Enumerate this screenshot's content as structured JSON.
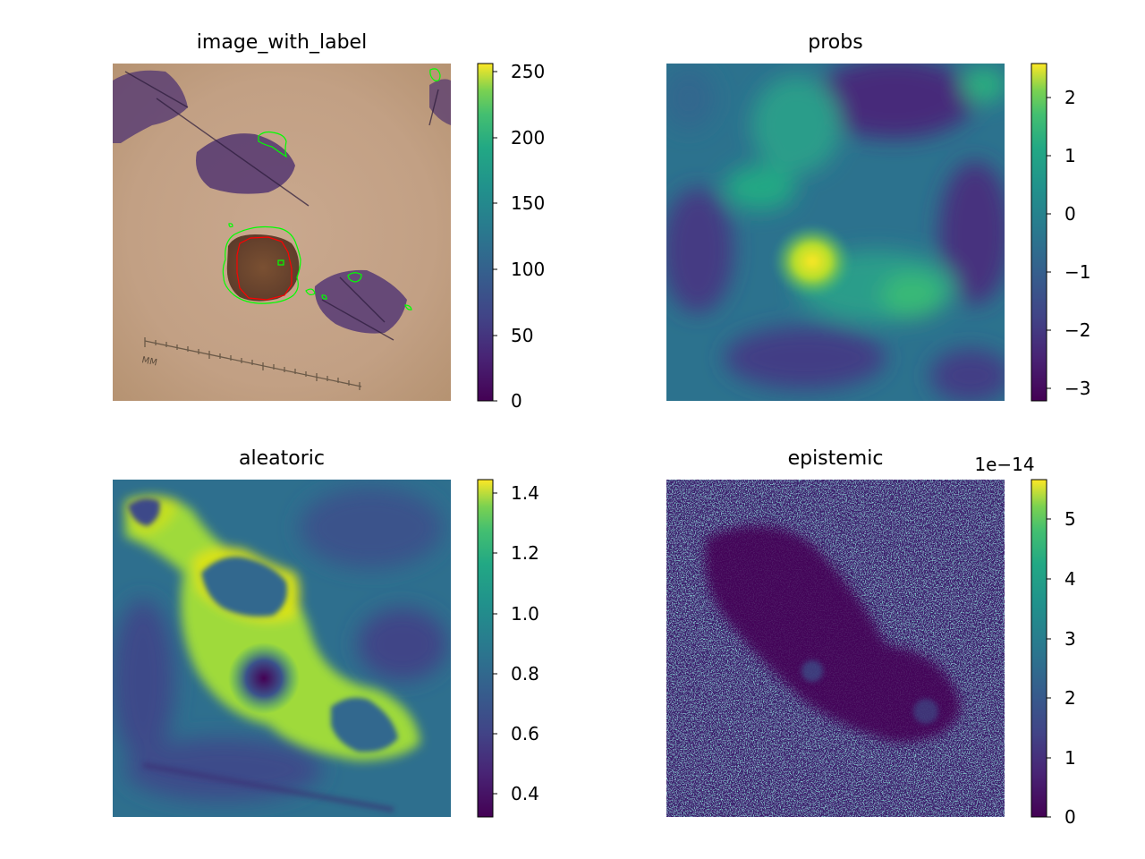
{
  "chart_data": [
    {
      "type": "heatmap",
      "title": "image_with_label",
      "colorbar": {
        "ticks": [
          "0",
          "50",
          "100",
          "150",
          "200",
          "250"
        ],
        "range": [
          0,
          255
        ],
        "colormap": "viridis"
      },
      "content": "skin lesion photo with red ground-truth contour and green predicted contours; millimeter ruler with label",
      "ruler_label": "MM",
      "contour_colors": {
        "label": "#ff0000",
        "prediction": "#00ff00"
      }
    },
    {
      "type": "heatmap",
      "title": "probs",
      "colorbar": {
        "ticks": [
          "2",
          "1",
          "0",
          "−1",
          "−2",
          "−3"
        ],
        "range": [
          -3.2,
          2.6
        ],
        "colormap": "viridis"
      }
    },
    {
      "type": "heatmap",
      "title": "aleatoric",
      "colorbar": {
        "ticks": [
          "1.4",
          "1.2",
          "1.0",
          "0.8",
          "0.6",
          "0.4"
        ],
        "range": [
          0.32,
          1.45
        ],
        "colormap": "viridis"
      }
    },
    {
      "type": "heatmap",
      "title": "epistemic",
      "colorbar": {
        "ticks": [
          "5",
          "4",
          "3",
          "2",
          "1",
          "0"
        ],
        "range": [
          0,
          5.7
        ],
        "scale_label": "1e−14",
        "colormap": "viridis"
      }
    }
  ],
  "colors": {
    "viridis_low": "#440154",
    "viridis_mid": "#21918c",
    "viridis_high": "#fde725"
  }
}
